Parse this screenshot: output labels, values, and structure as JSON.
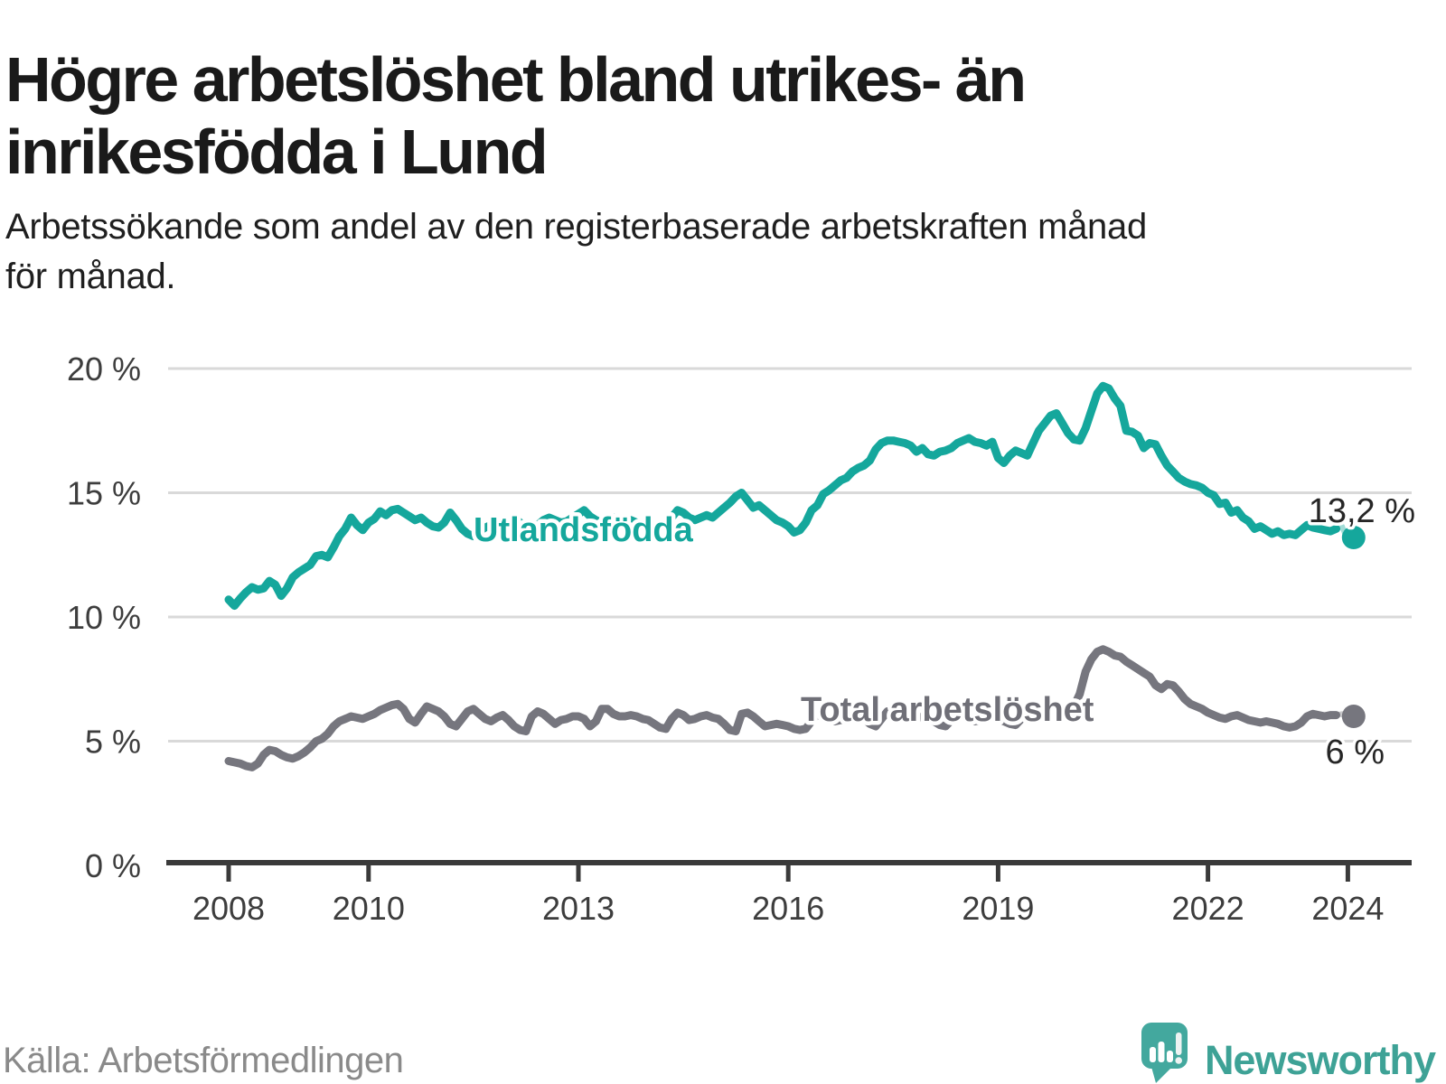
{
  "header": {
    "title": "Högre arbetslöshet bland utrikes- än\ninrikesfödda i Lund",
    "subtitle": "Arbetssökande som andel av den registerbaserade arbetskraften månad\nför månad."
  },
  "footer": {
    "source": "Källa: Arbetsförmedlingen",
    "brand": "Newsworthy"
  },
  "chart_data": {
    "type": "line",
    "x_start": 2008,
    "x_step": "1 month",
    "x_ticks": [
      2008,
      2010,
      2013,
      2016,
      2019,
      2022,
      2024
    ],
    "y_ticks": [
      0,
      5,
      10,
      15,
      20
    ],
    "y_tick_suffix": " %",
    "xlim": [
      2008,
      2024.6
    ],
    "ylim": [
      0,
      20
    ],
    "grid": true,
    "legend": "inline-labels",
    "series": [
      {
        "name": "Utlandsfödda",
        "color": "#15a79c",
        "end_label": "13,2 %",
        "end_value": 13.2,
        "faded_tail_points": 4,
        "values": [
          10.7,
          10.45,
          10.75,
          11.0,
          11.2,
          11.1,
          11.15,
          11.45,
          11.3,
          10.85,
          11.15,
          11.6,
          11.8,
          11.95,
          12.1,
          12.45,
          12.5,
          12.4,
          12.8,
          13.25,
          13.55,
          14.0,
          13.7,
          13.5,
          13.8,
          13.95,
          14.25,
          14.1,
          14.3,
          14.35,
          14.2,
          14.05,
          13.9,
          14.0,
          13.8,
          13.65,
          13.6,
          13.8,
          14.2,
          13.9,
          13.55,
          13.35,
          13.25,
          13.45,
          13.6,
          13.7,
          13.5,
          13.6,
          13.85,
          14.0,
          13.8,
          13.65,
          13.55,
          13.7,
          13.9,
          14.0,
          13.9,
          13.8,
          13.85,
          14.0,
          14.15,
          14.3,
          14.05,
          13.9,
          13.8,
          13.9,
          14.0,
          13.95,
          13.85,
          13.9,
          13.8,
          13.7,
          13.75,
          13.65,
          13.5,
          13.6,
          14.0,
          14.3,
          14.2,
          14.0,
          13.9,
          14.0,
          14.1,
          14.0,
          14.2,
          14.4,
          14.6,
          14.85,
          15.0,
          14.7,
          14.4,
          14.5,
          14.3,
          14.1,
          13.9,
          13.8,
          13.65,
          13.4,
          13.5,
          13.8,
          14.3,
          14.5,
          14.95,
          15.1,
          15.3,
          15.5,
          15.6,
          15.85,
          16.0,
          16.1,
          16.3,
          16.75,
          17.0,
          17.1,
          17.1,
          17.05,
          17.0,
          16.9,
          16.65,
          16.8,
          16.55,
          16.5,
          16.65,
          16.7,
          16.8,
          17.0,
          17.1,
          17.2,
          17.05,
          17.0,
          16.9,
          17.05,
          16.4,
          16.2,
          16.5,
          16.7,
          16.6,
          16.5,
          17.0,
          17.5,
          17.8,
          18.1,
          18.2,
          17.8,
          17.4,
          17.15,
          17.1,
          17.6,
          18.3,
          19.0,
          19.3,
          19.2,
          18.8,
          18.5,
          17.5,
          17.45,
          17.3,
          16.8,
          17.0,
          16.95,
          16.5,
          16.1,
          15.85,
          15.6,
          15.45,
          15.35,
          15.3,
          15.2,
          15.0,
          14.9,
          14.55,
          14.6,
          14.2,
          14.3,
          14.0,
          13.85,
          13.55,
          13.65,
          13.5,
          13.35,
          13.45,
          13.3,
          13.35,
          13.3,
          13.5,
          13.7,
          13.6,
          13.55,
          13.5,
          13.45,
          13.55,
          13.65,
          13.05,
          13.2
        ]
      },
      {
        "name": "Total arbetslöshet",
        "color": "#76767e",
        "end_label": "6 %",
        "end_value": 6.0,
        "faded_tail_points": 4,
        "values": [
          4.2,
          4.15,
          4.1,
          4.0,
          3.95,
          4.1,
          4.45,
          4.65,
          4.6,
          4.45,
          4.35,
          4.3,
          4.4,
          4.55,
          4.75,
          5.0,
          5.1,
          5.3,
          5.6,
          5.8,
          5.9,
          6.0,
          5.95,
          5.9,
          6.0,
          6.1,
          6.25,
          6.35,
          6.45,
          6.5,
          6.3,
          5.9,
          5.75,
          6.1,
          6.4,
          6.3,
          6.2,
          6.0,
          5.7,
          5.6,
          5.9,
          6.2,
          6.3,
          6.1,
          5.9,
          5.8,
          5.95,
          6.05,
          5.85,
          5.6,
          5.45,
          5.4,
          6.0,
          6.2,
          6.1,
          5.9,
          5.7,
          5.85,
          5.9,
          6.0,
          6.0,
          5.9,
          5.6,
          5.8,
          6.3,
          6.3,
          6.1,
          6.0,
          6.0,
          6.05,
          6.0,
          5.9,
          5.85,
          5.7,
          5.55,
          5.5,
          5.9,
          6.15,
          6.05,
          5.85,
          5.9,
          6.0,
          6.05,
          5.95,
          5.9,
          5.7,
          5.45,
          5.4,
          6.1,
          6.15,
          6.0,
          5.8,
          5.6,
          5.65,
          5.7,
          5.65,
          5.6,
          5.5,
          5.45,
          5.5,
          5.8,
          6.1,
          6.0,
          5.9,
          5.8,
          5.85,
          5.9,
          5.95,
          6.0,
          5.9,
          5.7,
          5.6,
          5.9,
          6.2,
          6.1,
          6.0,
          5.9,
          5.95,
          6.0,
          5.95,
          5.9,
          5.8,
          5.65,
          5.6,
          5.85,
          6.1,
          6.0,
          5.9,
          5.8,
          5.85,
          5.9,
          5.95,
          5.9,
          5.8,
          5.7,
          5.65,
          5.9,
          6.15,
          6.1,
          6.0,
          5.95,
          6.0,
          6.1,
          6.2,
          6.3,
          6.4,
          6.9,
          7.8,
          8.3,
          8.6,
          8.7,
          8.6,
          8.45,
          8.4,
          8.2,
          8.05,
          7.9,
          7.75,
          7.6,
          7.25,
          7.1,
          7.3,
          7.25,
          7.0,
          6.7,
          6.5,
          6.4,
          6.3,
          6.15,
          6.05,
          5.95,
          5.9,
          6.0,
          6.05,
          5.95,
          5.85,
          5.8,
          5.75,
          5.8,
          5.75,
          5.7,
          5.6,
          5.55,
          5.6,
          5.75,
          6.0,
          6.1,
          6.05,
          6.0,
          6.05,
          6.05,
          6.1,
          5.85,
          6.0
        ]
      }
    ]
  }
}
